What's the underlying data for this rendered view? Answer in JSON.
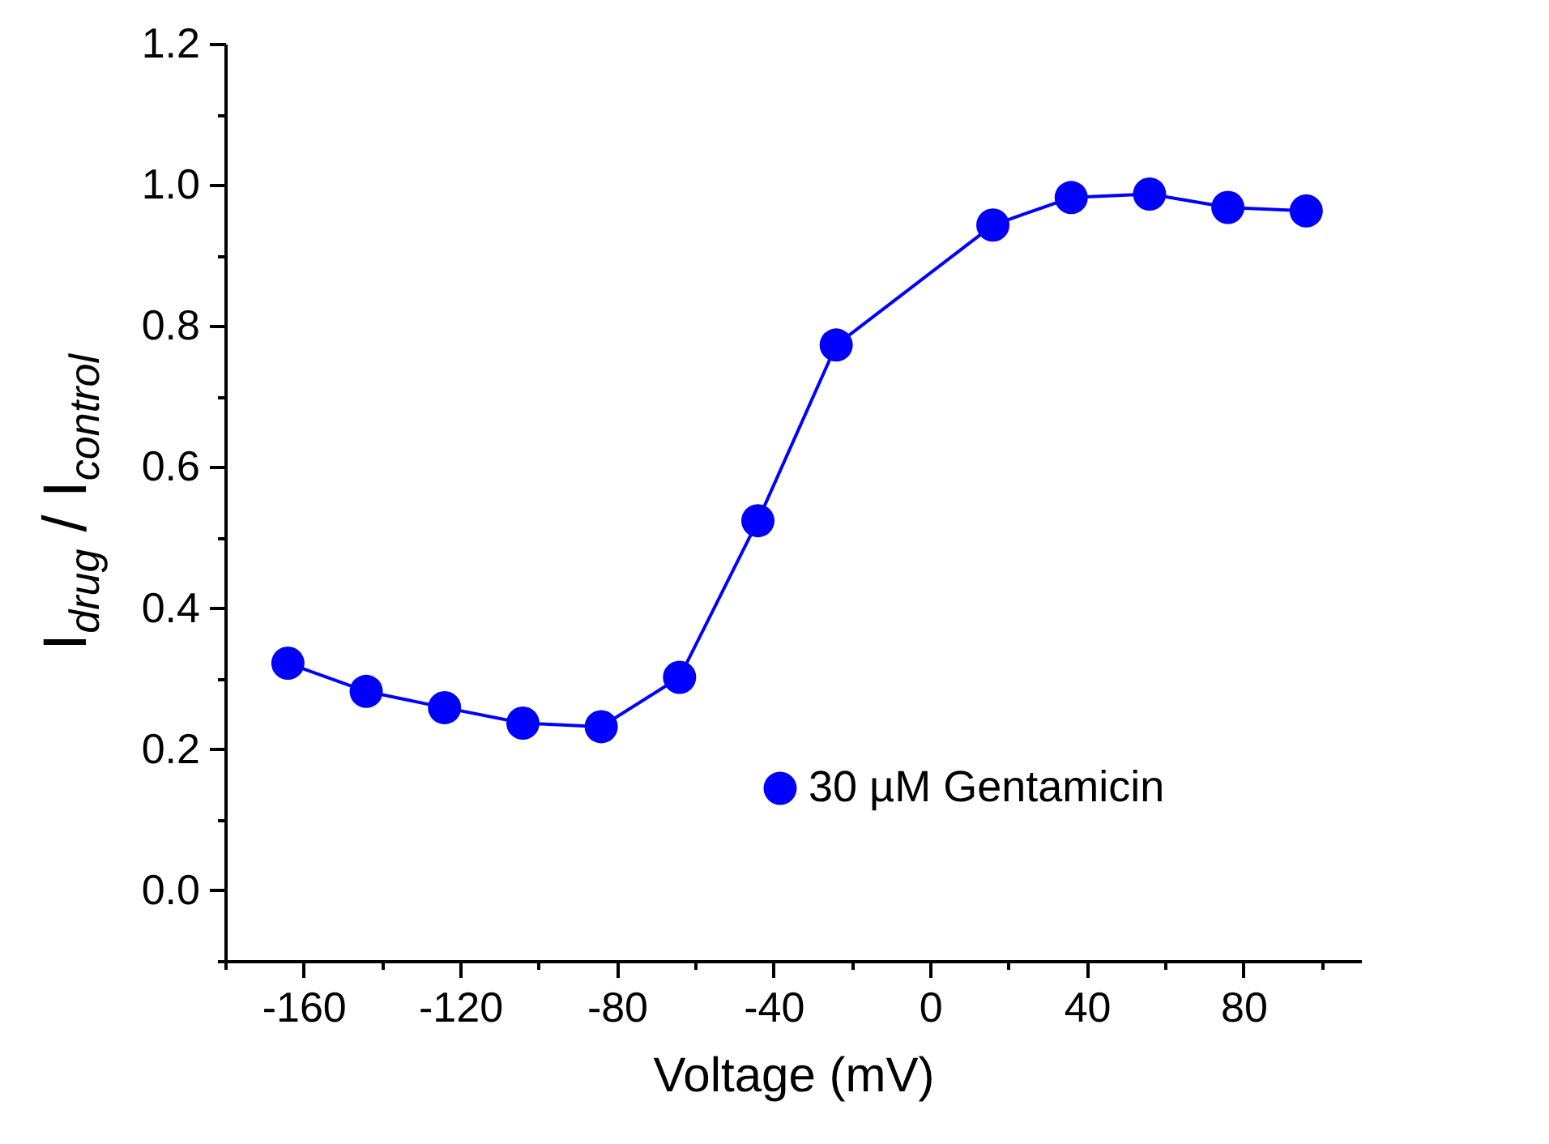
{
  "chart_data": {
    "type": "line",
    "xlabel": "Voltage (mV)",
    "ylabel": "I$_{drug}$ / I$_{control}$",
    "x": [
      -164,
      -144,
      -124,
      -104,
      -84,
      -64,
      -44,
      -24,
      16,
      36,
      56,
      76,
      96
    ],
    "series": [
      {
        "name": "30 µM Gentamicin",
        "color": "#0000ff",
        "values": [
          0.322,
          0.282,
          0.259,
          0.237,
          0.232,
          0.302,
          0.524,
          0.773,
          0.943,
          0.982,
          0.987,
          0.968,
          0.963
        ]
      }
    ],
    "xlim": [
      -180,
      110
    ],
    "xticks": [
      {
        "value": -180,
        "label": null
      },
      -160,
      {
        "value": -140,
        "label": null
      },
      -120,
      {
        "value": -100,
        "label": null
      },
      -80,
      {
        "value": -60,
        "label": null
      },
      -40,
      {
        "value": -20,
        "label": null
      },
      0,
      {
        "value": 20,
        "label": null
      },
      40,
      {
        "value": 60,
        "label": null
      },
      80,
      {
        "value": 100,
        "label": null
      }
    ],
    "ylim": [
      -0.1,
      1.2
    ],
    "yticks": [
      {
        "value": -0.1,
        "label": null
      },
      {
        "value": 0,
        "label": "0.0"
      },
      {
        "value": 0.1,
        "label": null
      },
      0.2,
      {
        "value": 0.3,
        "label": null
      },
      0.4,
      {
        "value": 0.5,
        "label": null
      },
      0.6,
      {
        "value": 0.7,
        "label": null
      },
      0.8,
      {
        "value": 0.9,
        "label": null
      },
      {
        "value": 1,
        "label": "1.0"
      },
      {
        "value": 1.1,
        "label": null
      },
      1.2
    ],
    "marker": "circle",
    "line_style": "solid",
    "grid": false,
    "legend": "bottom right"
  }
}
